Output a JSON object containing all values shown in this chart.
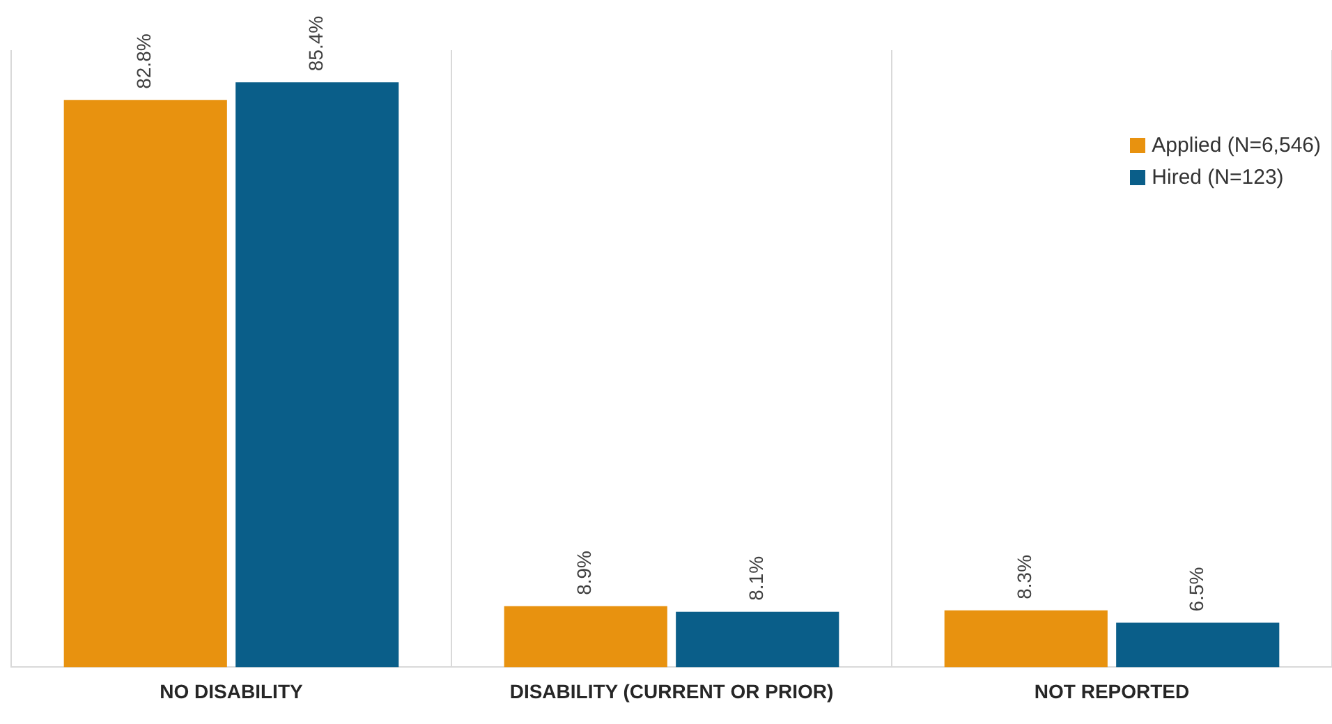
{
  "chart_data": {
    "type": "bar",
    "categories": [
      "NO DISABILITY",
      "DISABILITY (CURRENT OR PRIOR)",
      "NOT REPORTED"
    ],
    "series": [
      {
        "name": "Applied (N=6,546)",
        "color": "#e8920f",
        "values": [
          82.8,
          8.9,
          8.3
        ],
        "value_labels": [
          "82.8%",
          "8.9%",
          "8.3%"
        ]
      },
      {
        "name": "Hired (N=123)",
        "color": "#0a5e89",
        "values": [
          85.4,
          8.1,
          6.5
        ],
        "value_labels": [
          "85.4%",
          "8.1%",
          "6.5%"
        ]
      }
    ],
    "grid": "x",
    "legend": "top right"
  }
}
